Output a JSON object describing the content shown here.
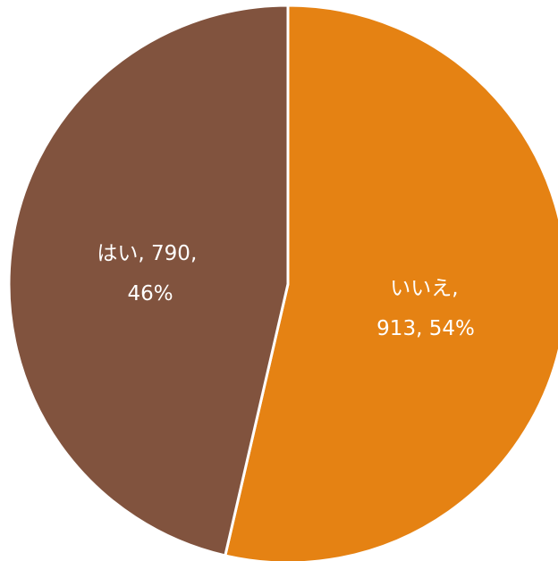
{
  "chart_data": {
    "type": "pie",
    "start_angle_deg": 0,
    "direction": "clockwise",
    "slices": [
      {
        "label": "いいえ",
        "value": 913,
        "percent": "54%",
        "color": "#E58213",
        "label_line1": "いいえ,",
        "label_line2": "913, 54%"
      },
      {
        "label": "はい",
        "value": 790,
        "percent": "46%",
        "color": "#81533E",
        "label_line1": "はい, 790,",
        "label_line2": "46%"
      }
    ],
    "slice_border_color": "#ffffff"
  }
}
